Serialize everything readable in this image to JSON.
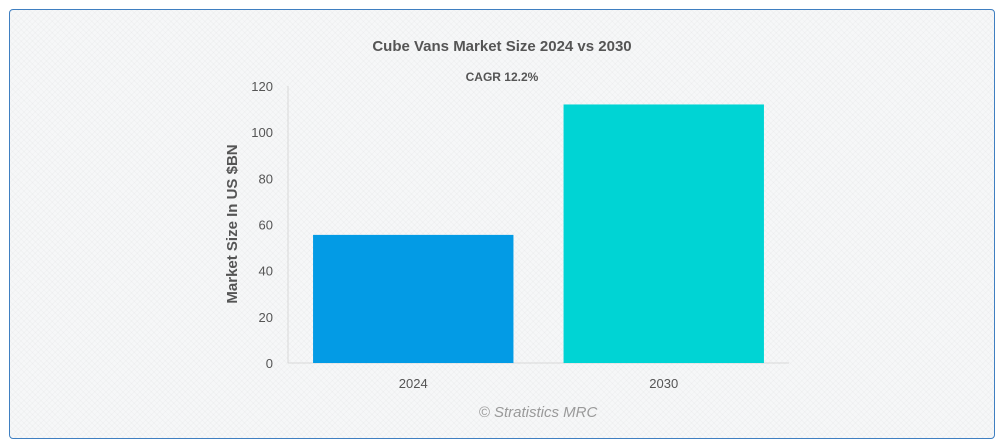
{
  "chart_data": {
    "type": "bar",
    "title": "Cube Vans Market Size 2024 vs 2030",
    "annotation": "CAGR 12.2%",
    "categories": [
      "2024",
      "2030"
    ],
    "values": [
      55.5,
      112
    ],
    "colors": [
      "#039be5",
      "#00d4d4"
    ],
    "xlabel": "",
    "ylabel": "Market Size In US $BN",
    "ylim": [
      0,
      120
    ],
    "yticks": [
      "0",
      "20",
      "40",
      "60",
      "80",
      "100",
      "120"
    ],
    "grid": false,
    "legend": "none"
  },
  "credit": "© Stratistics MRC"
}
